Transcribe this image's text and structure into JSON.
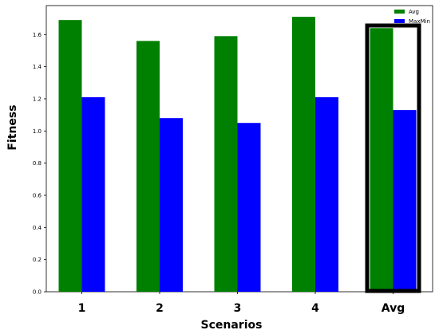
{
  "chart_data": {
    "type": "bar",
    "categories": [
      "1",
      "2",
      "3",
      "4",
      "Avg"
    ],
    "series": [
      {
        "name": "Avg",
        "values": [
          1.69,
          1.56,
          1.59,
          1.71,
          1.64
        ],
        "color": "#008000"
      },
      {
        "name": "MaxMin",
        "values": [
          1.21,
          1.08,
          1.05,
          1.21,
          1.13
        ],
        "color": "#0000ff"
      }
    ],
    "xlabel": "Scenarios",
    "ylabel": "Fitness",
    "ylim": [
      0,
      1.78
    ],
    "yticks": [
      "0.0",
      "0.2",
      "0.4",
      "0.6",
      "0.8",
      "1.0",
      "1.2",
      "1.4",
      "1.6"
    ],
    "grid": false,
    "legend_position": "top-right",
    "highlighted_category": "Avg"
  }
}
